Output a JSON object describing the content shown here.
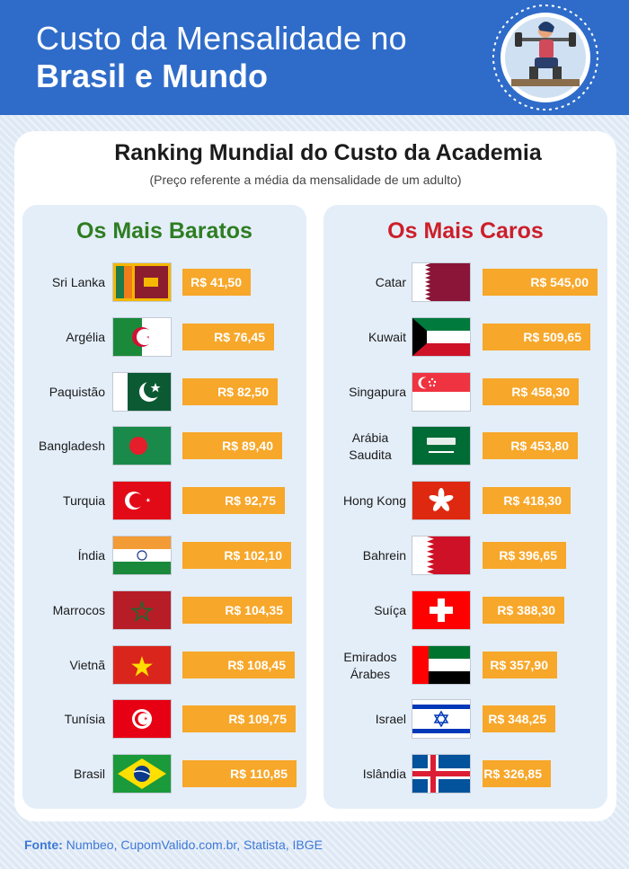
{
  "header": {
    "title_line1": "Custo da Mensalidade no",
    "title_line2": "Brasil e Mundo"
  },
  "logo": {
    "icon": "gym-person-icon"
  },
  "chart_data": [
    {
      "type": "bar",
      "title": "Ranking Mundial do Custo da Academia",
      "subtitle": "(Preço referente a média da mensalidade de um adulto)",
      "panel_title": "Os Mais Baratos",
      "panel_title_color": "#2e7d22",
      "categories": [
        "Sri Lanka",
        "Argélia",
        "Paquistão",
        "Bangladesh",
        "Turquia",
        "Índia",
        "Marrocos",
        "Vietnã",
        "Tunísia",
        "Brasil"
      ],
      "values": [
        41.5,
        76.45,
        82.5,
        89.4,
        92.75,
        102.1,
        104.35,
        108.45,
        109.75,
        110.85
      ],
      "labels": [
        "R$ 41,50",
        "R$ 76,45",
        "R$ 82,50",
        "R$ 89,40",
        "R$ 92,75",
        "R$ 102,10",
        "R$ 104,35",
        "R$ 108,45",
        "R$ 109,75",
        "R$ 110,85"
      ],
      "flags": [
        "srilanka",
        "algeria",
        "pakistan",
        "bangladesh",
        "turkey",
        "india",
        "morocco",
        "vietnam",
        "tunisia",
        "brazil"
      ],
      "bar_color": "#f7a72a"
    },
    {
      "type": "bar",
      "panel_title": "Os Mais Caros",
      "panel_title_color": "#cc1f2a",
      "categories": [
        "Catar",
        "Kuwait",
        "Singapura",
        "Arábia Saudita",
        "Hong Kong",
        "Bahrein",
        "Suíça",
        "Emirados Árabes",
        "Israel",
        "Islândia"
      ],
      "values": [
        545.0,
        509.65,
        458.3,
        453.8,
        418.3,
        396.65,
        388.3,
        357.9,
        348.25,
        326.85
      ],
      "labels": [
        "R$ 545,00",
        "R$ 509,65",
        "R$ 458,30",
        "R$ 453,80",
        "R$ 418,30",
        "R$ 396,65",
        "R$ 388,30",
        "R$ 357,90",
        "R$ 348,25",
        "R$ 326,85"
      ],
      "flags": [
        "qatar",
        "kuwait",
        "singapore",
        "saudi",
        "hongkong",
        "bahrain",
        "switzerland",
        "uae",
        "israel",
        "iceland"
      ],
      "bar_color": "#f7a72a"
    }
  ],
  "source": {
    "label": "Fonte:",
    "text": " Numbeo, CupomValido.com.br, Statista, IBGE"
  }
}
